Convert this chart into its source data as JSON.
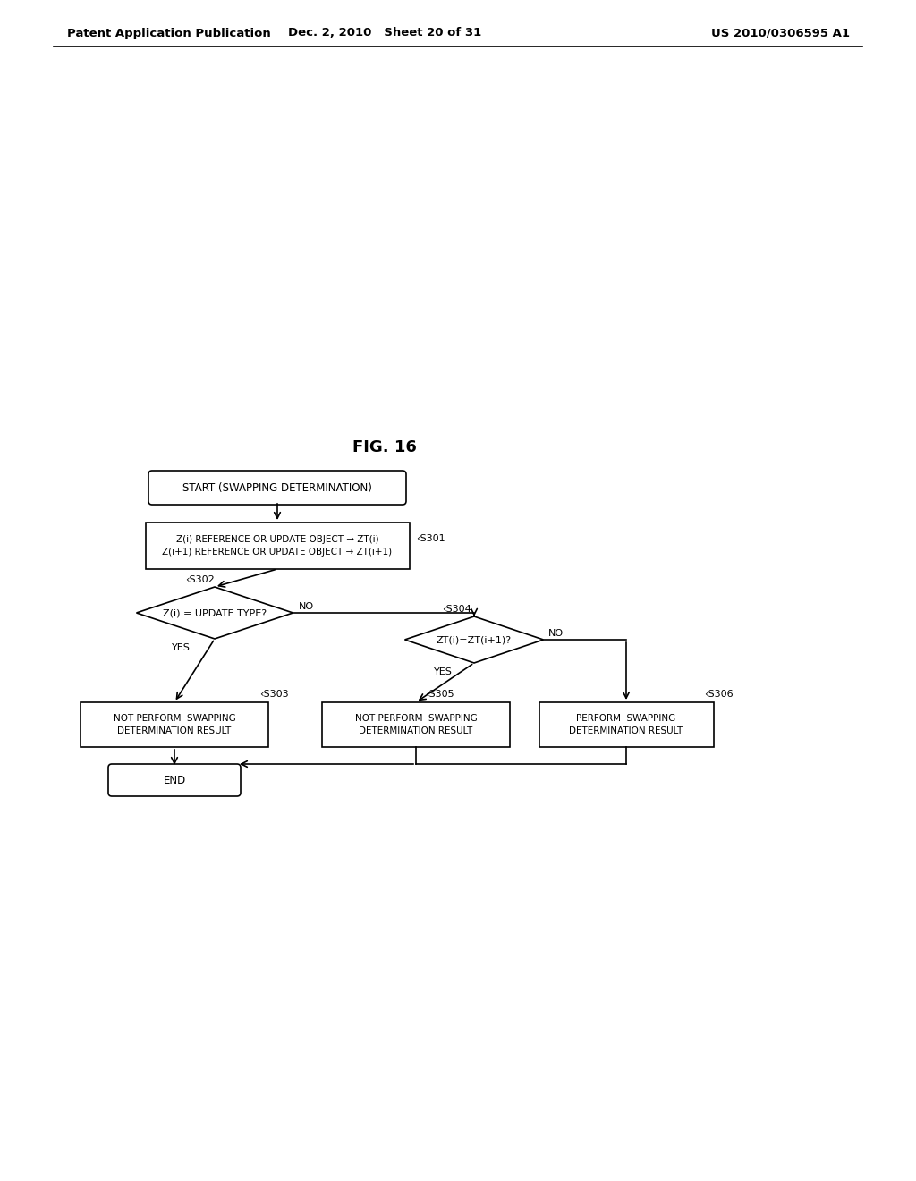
{
  "fig_label": "FIG. 16",
  "header_left": "Patent Application Publication",
  "header_mid": "Dec. 2, 2010   Sheet 20 of 31",
  "header_right": "US 2010/0306595 A1",
  "bg_color": "#ffffff",
  "line_color": "#000000",
  "text_color": "#000000",
  "start_text": "START (SWAPPING DETERMINATION)",
  "s301_text": "Z(i) REFERENCE OR UPDATE OBJECT → ZT(i)\nZ(i+1) REFERENCE OR UPDATE OBJECT → ZT(i+1)",
  "s302_text": "Z(i) = UPDATE TYPE?",
  "s304_text": "ZT(i)=ZT(i+1)?",
  "s303_text": "NOT PERFORM  SWAPPING\nDETERMINATION RESULT",
  "s305_text": "NOT PERFORM  SWAPPING\nDETERMINATION RESULT",
  "s306_text": "PERFORM  SWAPPING\nDETERMINATION RESULT",
  "end_text": "END",
  "label_s301": "‹S301",
  "label_s302": "‹S302",
  "label_s303": "‹S303",
  "label_s304": "‹S304",
  "label_s305": "‹S305",
  "label_s306": "‹S306",
  "yes_text": "YES",
  "no_text": "NO"
}
